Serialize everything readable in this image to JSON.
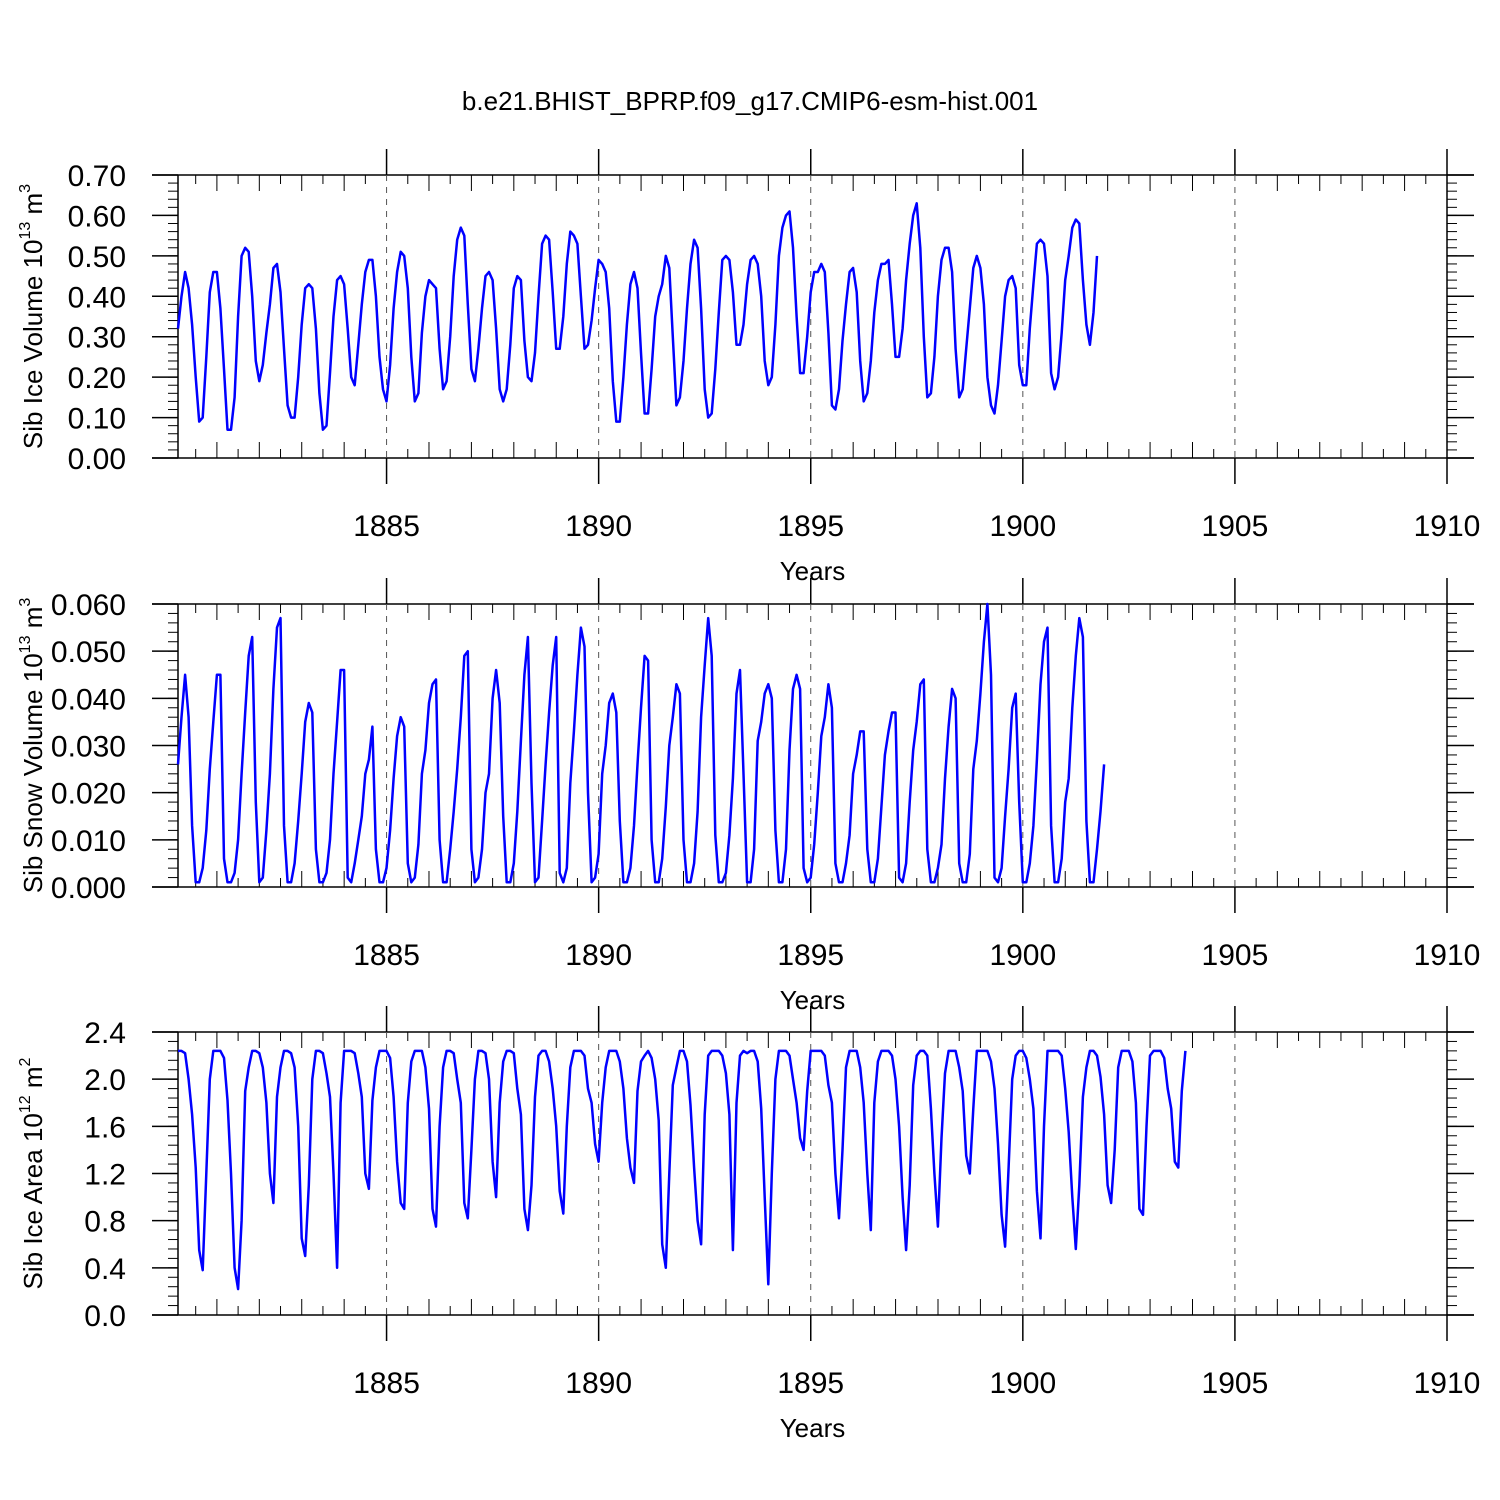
{
  "title": "b.e21.BHIST_BPRP.f09_g17.CMIP6-esm-hist.001",
  "chart_data": [
    {
      "type": "line",
      "name": "ice-volume",
      "ylabel": "Sib Ice Volume 10",
      "ylabel_exp": "13",
      "ylabel_unit": " m",
      "ylabel_unit_exp": "3",
      "xlabel": "Years",
      "xlim": [
        1880.083,
        1910.0
      ],
      "ylim": [
        0.0,
        0.7
      ],
      "yticks": [
        0.0,
        0.1,
        0.2,
        0.3,
        0.4,
        0.5,
        0.6,
        0.7
      ],
      "ytick_labels": [
        "0.00",
        "0.10",
        "0.20",
        "0.30",
        "0.40",
        "0.50",
        "0.60",
        "0.70"
      ],
      "yminor_step": 0.02,
      "xticks": [
        1885,
        1890,
        1895,
        1900,
        1905,
        1910
      ],
      "xtick_labels": [
        "1885",
        "1890",
        "1895",
        "1900",
        "1905",
        "1910"
      ],
      "series": [
        {
          "name": "Sib Ice Volume",
          "color": "#0000ff",
          "x_start": 1880.083,
          "x_step": 0.08333,
          "values": [
            0.32,
            0.4,
            0.46,
            0.42,
            0.33,
            0.2,
            0.09,
            0.1,
            0.25,
            0.41,
            0.46,
            0.46,
            0.37,
            0.22,
            0.07,
            0.07,
            0.15,
            0.35,
            0.5,
            0.52,
            0.51,
            0.4,
            0.24,
            0.19,
            0.23,
            0.31,
            0.38,
            0.47,
            0.48,
            0.41,
            0.27,
            0.13,
            0.1,
            0.1,
            0.2,
            0.33,
            0.42,
            0.43,
            0.42,
            0.32,
            0.16,
            0.07,
            0.08,
            0.21,
            0.35,
            0.44,
            0.45,
            0.43,
            0.32,
            0.2,
            0.18,
            0.28,
            0.38,
            0.46,
            0.49,
            0.49,
            0.4,
            0.25,
            0.17,
            0.14,
            0.23,
            0.37,
            0.46,
            0.51,
            0.5,
            0.42,
            0.25,
            0.14,
            0.16,
            0.31,
            0.4,
            0.44,
            0.43,
            0.42,
            0.27,
            0.17,
            0.19,
            0.3,
            0.45,
            0.54,
            0.57,
            0.55,
            0.38,
            0.22,
            0.19,
            0.27,
            0.37,
            0.45,
            0.46,
            0.44,
            0.32,
            0.17,
            0.14,
            0.17,
            0.28,
            0.42,
            0.45,
            0.44,
            0.29,
            0.2,
            0.19,
            0.26,
            0.4,
            0.53,
            0.55,
            0.54,
            0.41,
            0.27,
            0.27,
            0.35,
            0.48,
            0.56,
            0.55,
            0.53,
            0.4,
            0.27,
            0.28,
            0.34,
            0.42,
            0.49,
            0.48,
            0.46,
            0.37,
            0.19,
            0.09,
            0.09,
            0.2,
            0.33,
            0.43,
            0.46,
            0.42,
            0.26,
            0.11,
            0.11,
            0.22,
            0.35,
            0.4,
            0.43,
            0.5,
            0.47,
            0.3,
            0.13,
            0.15,
            0.24,
            0.37,
            0.48,
            0.54,
            0.52,
            0.37,
            0.17,
            0.1,
            0.11,
            0.22,
            0.36,
            0.49,
            0.5,
            0.49,
            0.41,
            0.28,
            0.28,
            0.33,
            0.43,
            0.49,
            0.5,
            0.48,
            0.4,
            0.24,
            0.18,
            0.2,
            0.33,
            0.5,
            0.57,
            0.6,
            0.61,
            0.52,
            0.35,
            0.21,
            0.21,
            0.3,
            0.41,
            0.46,
            0.46,
            0.48,
            0.46,
            0.31,
            0.13,
            0.12,
            0.17,
            0.29,
            0.38,
            0.46,
            0.47,
            0.41,
            0.24,
            0.14,
            0.16,
            0.24,
            0.36,
            0.44,
            0.48,
            0.48,
            0.49,
            0.38,
            0.25,
            0.25,
            0.32,
            0.44,
            0.53,
            0.6,
            0.63,
            0.52,
            0.3,
            0.15,
            0.16,
            0.25,
            0.4,
            0.49,
            0.52,
            0.52,
            0.46,
            0.27,
            0.15,
            0.17,
            0.27,
            0.37,
            0.47,
            0.5,
            0.47,
            0.38,
            0.2,
            0.13,
            0.11,
            0.18,
            0.29,
            0.4,
            0.44,
            0.45,
            0.42,
            0.23,
            0.18,
            0.18,
            0.32,
            0.43,
            0.53,
            0.54,
            0.53,
            0.45,
            0.21,
            0.17,
            0.2,
            0.31,
            0.44,
            0.5,
            0.57,
            0.59,
            0.58,
            0.44,
            0.33,
            0.28,
            0.36,
            0.5
          ]
        }
      ]
    },
    {
      "type": "line",
      "name": "snow-volume",
      "ylabel": "Sib Snow Volume 10",
      "ylabel_exp": "13",
      "ylabel_unit": " m",
      "ylabel_unit_exp": "3",
      "xlabel": "Years",
      "xlim": [
        1880.083,
        1910.0
      ],
      "ylim": [
        0.0,
        0.06
      ],
      "yticks": [
        0.0,
        0.01,
        0.02,
        0.03,
        0.04,
        0.05,
        0.06
      ],
      "ytick_labels": [
        "0.000",
        "0.010",
        "0.020",
        "0.030",
        "0.040",
        "0.050",
        "0.060"
      ],
      "yminor_step": 0.002,
      "xticks": [
        1885,
        1890,
        1895,
        1900,
        1905,
        1910
      ],
      "xtick_labels": [
        "1885",
        "1890",
        "1895",
        "1900",
        "1905",
        "1910"
      ],
      "series": [
        {
          "name": "Sib Snow Volume",
          "color": "#0000ff",
          "x_start": 1880.083,
          "x_step": 0.08333,
          "values": [
            0.026,
            0.036,
            0.045,
            0.036,
            0.013,
            0.001,
            0.001,
            0.004,
            0.012,
            0.025,
            0.035,
            0.045,
            0.045,
            0.006,
            0.001,
            0.001,
            0.003,
            0.01,
            0.024,
            0.037,
            0.049,
            0.053,
            0.018,
            0.001,
            0.002,
            0.012,
            0.024,
            0.042,
            0.055,
            0.057,
            0.013,
            0.001,
            0.001,
            0.005,
            0.014,
            0.024,
            0.035,
            0.039,
            0.037,
            0.008,
            0.001,
            0.001,
            0.003,
            0.01,
            0.024,
            0.035,
            0.046,
            0.046,
            0.002,
            0.001,
            0.005,
            0.01,
            0.015,
            0.024,
            0.027,
            0.034,
            0.008,
            0.001,
            0.001,
            0.004,
            0.012,
            0.023,
            0.032,
            0.036,
            0.034,
            0.005,
            0.001,
            0.002,
            0.009,
            0.024,
            0.029,
            0.039,
            0.043,
            0.044,
            0.01,
            0.001,
            0.001,
            0.008,
            0.016,
            0.025,
            0.036,
            0.049,
            0.05,
            0.008,
            0.001,
            0.002,
            0.008,
            0.02,
            0.024,
            0.04,
            0.046,
            0.039,
            0.015,
            0.001,
            0.001,
            0.005,
            0.016,
            0.031,
            0.045,
            0.053,
            0.022,
            0.001,
            0.002,
            0.014,
            0.026,
            0.037,
            0.047,
            0.053,
            0.003,
            0.001,
            0.004,
            0.022,
            0.033,
            0.045,
            0.055,
            0.051,
            0.02,
            0.001,
            0.002,
            0.007,
            0.024,
            0.03,
            0.039,
            0.041,
            0.037,
            0.014,
            0.001,
            0.001,
            0.004,
            0.013,
            0.026,
            0.038,
            0.049,
            0.048,
            0.01,
            0.001,
            0.001,
            0.006,
            0.017,
            0.03,
            0.036,
            0.043,
            0.041,
            0.01,
            0.001,
            0.001,
            0.005,
            0.016,
            0.036,
            0.047,
            0.057,
            0.049,
            0.011,
            0.001,
            0.001,
            0.003,
            0.011,
            0.023,
            0.041,
            0.046,
            0.024,
            0.001,
            0.001,
            0.008,
            0.031,
            0.035,
            0.041,
            0.043,
            0.04,
            0.012,
            0.001,
            0.001,
            0.008,
            0.029,
            0.042,
            0.045,
            0.042,
            0.004,
            0.001,
            0.002,
            0.009,
            0.02,
            0.032,
            0.036,
            0.043,
            0.038,
            0.005,
            0.001,
            0.001,
            0.005,
            0.011,
            0.024,
            0.028,
            0.033,
            0.033,
            0.008,
            0.001,
            0.001,
            0.006,
            0.017,
            0.028,
            0.033,
            0.037,
            0.037,
            0.002,
            0.001,
            0.005,
            0.018,
            0.029,
            0.035,
            0.043,
            0.044,
            0.008,
            0.001,
            0.001,
            0.004,
            0.009,
            0.023,
            0.034,
            0.042,
            0.04,
            0.005,
            0.001,
            0.001,
            0.007,
            0.025,
            0.031,
            0.041,
            0.052,
            0.06,
            0.045,
            0.002,
            0.001,
            0.004,
            0.015,
            0.025,
            0.038,
            0.041,
            0.018,
            0.001,
            0.001,
            0.005,
            0.013,
            0.027,
            0.043,
            0.052,
            0.055,
            0.013,
            0.001,
            0.001,
            0.006,
            0.018,
            0.023,
            0.038,
            0.049,
            0.057,
            0.053,
            0.014,
            0.001,
            0.001,
            0.008,
            0.016,
            0.026
          ]
        }
      ]
    },
    {
      "type": "line",
      "name": "ice-area",
      "ylabel": "Sib Ice Area 10",
      "ylabel_exp": "12",
      "ylabel_unit": " m",
      "ylabel_unit_exp": "2",
      "xlabel": "Years",
      "xlim": [
        1880.083,
        1910.0
      ],
      "ylim": [
        0.0,
        2.4
      ],
      "yticks": [
        0.0,
        0.4,
        0.8,
        1.2,
        1.6,
        2.0,
        2.4
      ],
      "ytick_labels": [
        "0.0",
        "0.4",
        "0.8",
        "1.2",
        "1.6",
        "2.0",
        "2.4"
      ],
      "yminor_step": 0.08,
      "xticks": [
        1885,
        1890,
        1895,
        1900,
        1905,
        1910
      ],
      "xtick_labels": [
        "1885",
        "1890",
        "1895",
        "1900",
        "1905",
        "1910"
      ],
      "series": [
        {
          "name": "Sib Ice Area",
          "color": "#0000ff",
          "x_start": 1880.083,
          "x_step": 0.08333,
          "values": [
            2.24,
            2.24,
            2.22,
            2.0,
            1.7,
            1.25,
            0.55,
            0.38,
            1.2,
            2.0,
            2.24,
            2.24,
            2.24,
            2.18,
            1.82,
            1.2,
            0.4,
            0.22,
            0.8,
            1.9,
            2.1,
            2.24,
            2.24,
            2.22,
            2.1,
            1.8,
            1.2,
            0.95,
            1.85,
            2.1,
            2.24,
            2.24,
            2.22,
            2.1,
            1.6,
            0.65,
            0.5,
            1.1,
            2.0,
            2.24,
            2.24,
            2.22,
            2.05,
            1.85,
            1.2,
            0.4,
            1.8,
            2.24,
            2.24,
            2.24,
            2.22,
            2.05,
            1.85,
            1.2,
            1.07,
            1.82,
            2.1,
            2.24,
            2.24,
            2.24,
            2.18,
            1.85,
            1.3,
            0.95,
            0.9,
            1.8,
            2.15,
            2.24,
            2.24,
            2.24,
            2.1,
            1.75,
            0.9,
            0.75,
            1.6,
            2.1,
            2.24,
            2.24,
            2.22,
            2.0,
            1.8,
            0.95,
            0.82,
            1.4,
            2.0,
            2.24,
            2.24,
            2.22,
            2.0,
            1.3,
            1.0,
            1.8,
            2.15,
            2.24,
            2.24,
            2.22,
            1.92,
            1.7,
            0.9,
            0.72,
            1.1,
            1.85,
            2.2,
            2.24,
            2.24,
            2.15,
            1.92,
            1.6,
            1.05,
            0.86,
            1.6,
            2.1,
            2.24,
            2.24,
            2.24,
            2.2,
            1.92,
            1.8,
            1.45,
            1.3,
            1.8,
            2.1,
            2.24,
            2.24,
            2.24,
            2.15,
            1.92,
            1.5,
            1.25,
            1.12,
            1.9,
            2.15,
            2.2,
            2.24,
            2.18,
            2.0,
            1.65,
            0.6,
            0.4,
            1.2,
            1.95,
            2.1,
            2.24,
            2.24,
            2.15,
            1.78,
            1.25,
            0.8,
            0.6,
            1.7,
            2.2,
            2.24,
            2.24,
            2.24,
            2.2,
            2.05,
            1.7,
            0.55,
            1.8,
            2.2,
            2.24,
            2.22,
            2.24,
            2.24,
            2.15,
            1.75,
            1.0,
            0.26,
            1.2,
            2.0,
            2.24,
            2.24,
            2.24,
            2.2,
            2.0,
            1.8,
            1.5,
            1.4,
            1.9,
            2.24,
            2.24,
            2.24,
            2.24,
            2.2,
            1.95,
            1.8,
            1.2,
            0.82,
            1.4,
            2.1,
            2.24,
            2.24,
            2.24,
            2.1,
            1.8,
            1.2,
            0.72,
            1.8,
            2.15,
            2.24,
            2.24,
            2.24,
            2.2,
            2.0,
            1.6,
            1.0,
            0.55,
            1.1,
            1.95,
            2.2,
            2.24,
            2.24,
            2.2,
            1.75,
            1.2,
            0.75,
            1.5,
            2.05,
            2.24,
            2.24,
            2.24,
            2.1,
            1.9,
            1.35,
            1.2,
            1.75,
            2.24,
            2.24,
            2.24,
            2.24,
            2.15,
            1.92,
            1.45,
            0.85,
            0.58,
            1.25,
            2.0,
            2.2,
            2.24,
            2.24,
            2.18,
            2.0,
            1.75,
            1.05,
            0.65,
            1.6,
            2.24,
            2.24,
            2.24,
            2.24,
            2.2,
            1.92,
            1.55,
            1.0,
            0.56,
            1.1,
            1.85,
            2.1,
            2.24,
            2.24,
            2.2,
            2.02,
            1.7,
            1.1,
            0.95,
            1.4,
            2.1,
            2.24,
            2.24,
            2.24,
            2.15,
            1.8,
            0.9,
            0.85,
            1.6,
            2.2,
            2.24,
            2.24,
            2.24,
            2.18,
            1.92,
            1.75,
            1.3,
            1.25,
            1.9,
            2.24
          ]
        }
      ]
    }
  ]
}
